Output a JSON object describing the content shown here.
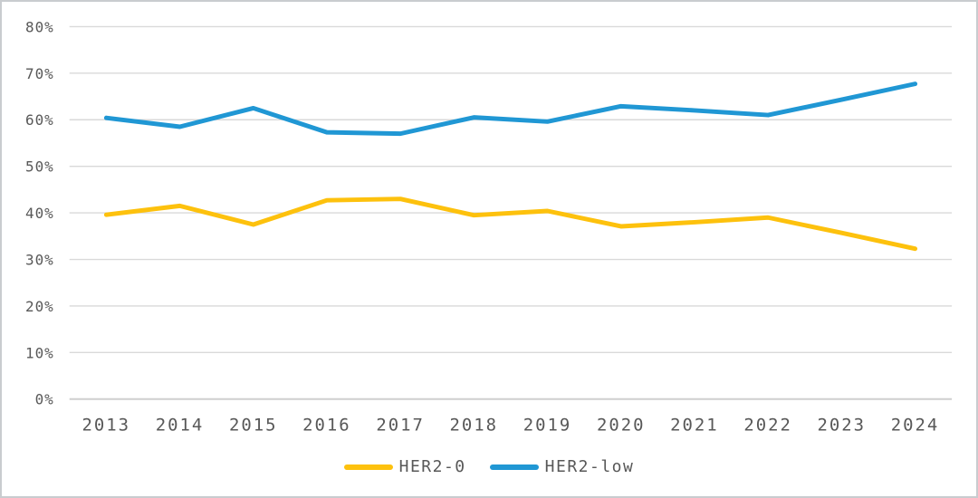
{
  "chart_data": {
    "type": "line",
    "title": "",
    "xlabel": "",
    "ylabel": "",
    "categories": [
      "2013",
      "2014",
      "2015",
      "2016",
      "2017",
      "2018",
      "2019",
      "2020",
      "2021",
      "2022",
      "2023",
      "2024"
    ],
    "series": [
      {
        "name": "HER2-0",
        "color": "#FDC10D",
        "values": [
          39.6,
          41.5,
          37.5,
          42.7,
          43.0,
          39.5,
          40.4,
          37.1,
          38.0,
          39.0,
          35.7,
          32.3
        ]
      },
      {
        "name": "HER2-low",
        "color": "#2097D4",
        "values": [
          60.4,
          58.5,
          62.5,
          57.3,
          57.0,
          60.5,
          59.6,
          62.9,
          62.0,
          61.0,
          64.3,
          67.7
        ]
      }
    ],
    "ylim": [
      0,
      80
    ],
    "ytick_step": 10,
    "ytick_labels": [
      "0%",
      "10%",
      "20%",
      "30%",
      "40%",
      "50%",
      "60%",
      "70%",
      "80%"
    ],
    "grid": true,
    "legend_position": "bottom-center"
  },
  "colors": {
    "background": "#FFFFFF",
    "frame_border": "#C9CCCF",
    "gridline": "#D9D9D9",
    "axis_line": "#CFCFCF",
    "tick_text": "#585858"
  }
}
